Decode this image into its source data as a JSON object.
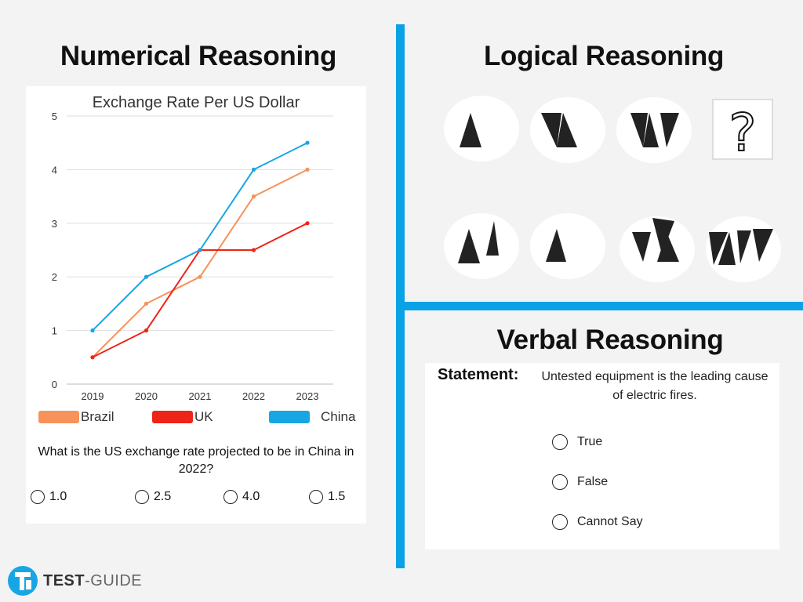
{
  "numerical": {
    "title": "Numerical Reasoning",
    "question": "What is the US exchange rate projected to be in China in 2022?",
    "options": [
      "1.0",
      "2.5",
      "4.0",
      "1.5"
    ]
  },
  "logical": {
    "title": "Logical Reasoning",
    "unknown_symbol": "?"
  },
  "verbal": {
    "title": "Verbal Reasoning",
    "statement_label": "Statement:",
    "statement_text": "Untested equipment is the leading cause of electric fires.",
    "options": [
      "True",
      "False",
      "Cannot Say"
    ]
  },
  "logo": {
    "brand_bold": "TEST",
    "brand_light": "-GUIDE"
  },
  "colors": {
    "divider": "#0aa2e6",
    "brazil": "#f7925a",
    "uk": "#ee2418",
    "china": "#17a6e3"
  },
  "chart_data": {
    "type": "line",
    "title": "Exchange Rate Per US Dollar",
    "categories": [
      "2019",
      "2020",
      "2021",
      "2022",
      "2023"
    ],
    "ylim": [
      0,
      5
    ],
    "yticks": [
      0,
      1,
      2,
      3,
      4,
      5
    ],
    "grid": true,
    "legend_position": "bottom",
    "series": [
      {
        "name": "Brazil",
        "values": [
          0.5,
          1.5,
          2.0,
          3.5,
          4.0
        ],
        "color": "#f7925a"
      },
      {
        "name": "UK",
        "values": [
          0.5,
          1.0,
          2.5,
          2.5,
          3.0
        ],
        "color": "#ee2418"
      },
      {
        "name": "China",
        "values": [
          1.0,
          2.0,
          2.5,
          4.0,
          4.5
        ],
        "color": "#17a6e3"
      }
    ]
  }
}
